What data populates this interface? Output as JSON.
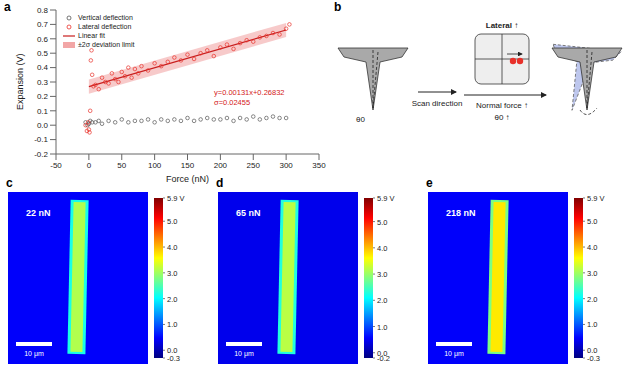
{
  "panel_labels": [
    "a",
    "b",
    "c",
    "d",
    "e"
  ],
  "chart_data": {
    "type": "scatter",
    "x_label": "Force (nN)",
    "y_label": "Expansion (V)",
    "xlim": [
      -50,
      350
    ],
    "xticks": [
      -50,
      0,
      50,
      100,
      150,
      200,
      250,
      300,
      350
    ],
    "ylim": [
      -0.2,
      0.8
    ],
    "yticks": [
      -0.2,
      -0.1,
      {
        "value": 0,
        "label": "0.0"
      },
      0.1,
      0.2,
      0.3,
      0.4,
      0.5,
      0.6,
      0.7,
      0.8
    ],
    "grid": false,
    "legend": "upper left",
    "annotations": [
      "y=0.00131x+0.26832",
      "σ=0.02455"
    ],
    "series": [
      {
        "name": "Vertical deflection",
        "type": "scatter",
        "color": "#555555",
        "marker": "open_circle",
        "x": [
          -5,
          -2,
          0,
          2,
          5,
          10,
          15,
          20,
          30,
          40,
          50,
          60,
          70,
          80,
          90,
          100,
          110,
          120,
          130,
          140,
          150,
          160,
          170,
          180,
          190,
          200,
          210,
          220,
          230,
          240,
          250,
          260,
          270,
          280,
          290,
          300
        ],
        "values": [
          0.02,
          0.0,
          0.01,
          0.03,
          0.02,
          0.02,
          0.03,
          0.01,
          0.03,
          0.02,
          0.04,
          0.02,
          0.03,
          0.03,
          0.04,
          0.02,
          0.04,
          0.03,
          0.04,
          0.03,
          0.05,
          0.03,
          0.04,
          0.05,
          0.04,
          0.04,
          0.05,
          0.03,
          0.05,
          0.04,
          0.06,
          0.04,
          0.05,
          0.06,
          0.05,
          0.05
        ]
      },
      {
        "name": "Lateral deflection",
        "type": "scatter",
        "color": "#e8302a",
        "marker": "open_circle",
        "x": [
          -5,
          -3,
          -1,
          0,
          1,
          2,
          3,
          4,
          5,
          7,
          10,
          15,
          20,
          25,
          30,
          35,
          40,
          45,
          50,
          55,
          60,
          65,
          70,
          75,
          80,
          90,
          100,
          110,
          120,
          130,
          140,
          150,
          160,
          170,
          180,
          190,
          200,
          210,
          220,
          230,
          240,
          250,
          260,
          270,
          280,
          290,
          300,
          305
        ],
        "values": [
          0.0,
          -0.04,
          0.02,
          -0.03,
          -0.05,
          0.1,
          0.45,
          0.52,
          0.35,
          0.27,
          0.28,
          0.25,
          0.33,
          0.3,
          0.29,
          0.36,
          0.32,
          0.3,
          0.37,
          0.34,
          0.4,
          0.33,
          0.39,
          0.36,
          0.41,
          0.38,
          0.43,
          0.41,
          0.44,
          0.47,
          0.45,
          0.49,
          0.46,
          0.5,
          0.52,
          0.48,
          0.54,
          0.56,
          0.53,
          0.57,
          0.59,
          0.58,
          0.61,
          0.62,
          0.64,
          0.63,
          0.67,
          0.7
        ]
      },
      {
        "name": "Linear fit",
        "type": "line",
        "color": "#c81e1e",
        "line_style": "solid",
        "x": [
          0,
          300
        ],
        "values": [
          0.26832,
          0.66132
        ]
      },
      {
        "name": "±2σ deviation limit",
        "type": "band",
        "color": "#f2a6a6",
        "x": [
          0,
          300
        ],
        "lower": [
          0.21922,
          0.61222
        ],
        "upper": [
          0.31742,
          0.71042
        ]
      }
    ]
  },
  "diagram": {
    "theta": "θ0",
    "scan": "Scan direction",
    "lateral": "Lateral ↑",
    "normal": "Normal force ↑",
    "theta_up": "θ0 ↑"
  },
  "images": [
    {
      "force_label": "22 nN",
      "scale_bar": "10 μm",
      "background": 0.45,
      "stripe": 3.1,
      "colorbar": {
        "range": [
          -0.3,
          5.9
        ],
        "ticks": [
          {
            "value": 5.9,
            "label": "5.9 V"
          },
          {
            "value": 5,
            "label": "5.0"
          },
          {
            "value": 4,
            "label": "4.0"
          },
          {
            "value": 3,
            "label": "3.0"
          },
          {
            "value": 2,
            "label": "2.0"
          },
          {
            "value": 1,
            "label": "1.0"
          },
          {
            "value": 0,
            "label": "0.0"
          },
          -0.3
        ]
      }
    },
    {
      "force_label": "65 nN",
      "scale_bar": "10 μm",
      "background": 0.45,
      "stripe": 3.2,
      "colorbar": {
        "range": [
          -0.2,
          5.9
        ],
        "ticks": [
          {
            "value": 5.9,
            "label": "5.9 V"
          },
          {
            "value": 5,
            "label": "5.0"
          },
          {
            "value": 4,
            "label": "4.0"
          },
          {
            "value": 3,
            "label": "3.0"
          },
          {
            "value": 2,
            "label": "2.0"
          },
          {
            "value": 1,
            "label": "1.0"
          },
          {
            "value": 0,
            "label": "0.0"
          },
          -0.2
        ]
      }
    },
    {
      "force_label": "218 nN",
      "scale_bar": "10 μm",
      "background": 0.45,
      "stripe": 3.7,
      "colorbar": {
        "range": [
          -0.3,
          5.9
        ],
        "ticks": [
          {
            "value": 5.9,
            "label": "5.9 V"
          },
          {
            "value": 5,
            "label": "5.0"
          },
          {
            "value": 4,
            "label": "4.0"
          },
          {
            "value": 3,
            "label": "3.0"
          },
          {
            "value": 2,
            "label": "2.0"
          },
          {
            "value": 1,
            "label": "1.0"
          },
          {
            "value": 0,
            "label": "0.0"
          },
          -0.3
        ]
      }
    }
  ]
}
